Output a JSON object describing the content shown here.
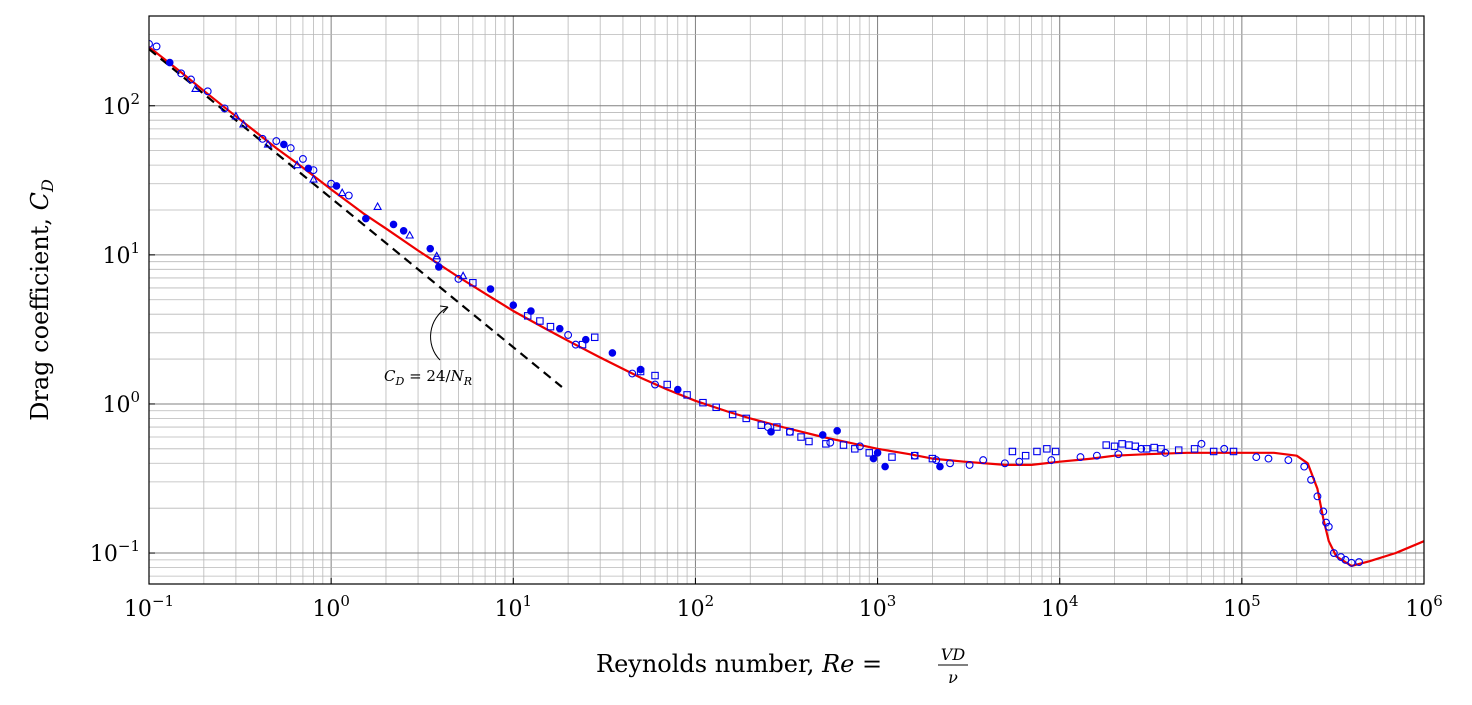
{
  "colors": {
    "curve": "#ee0000",
    "markers": "#0000ee",
    "reference_line": "#000000",
    "grid_major": "#808080",
    "grid_minor": "#b8b8b8",
    "background": "#ffffff"
  },
  "labels": {
    "xlabel_prefix": "Reynolds number, ",
    "xlabel_symbol": "Re",
    "xlabel_equals": " = ",
    "xlabel_numerator": "VD",
    "xlabel_denominator": "ν",
    "ylabel_prefix": "Drag coefficient, ",
    "ylabel_symbol": "C",
    "ylabel_subscript": "D",
    "annotation_symbol": "C",
    "annotation_subscript_d": "D",
    "annotation_middle": " = 24/",
    "annotation_symbol2": "N",
    "annotation_subscript_r": "R",
    "x_ticks": [
      {
        "base": "10",
        "exp": "−1"
      },
      {
        "base": "10",
        "exp": "0"
      },
      {
        "base": "10",
        "exp": "1"
      },
      {
        "base": "10",
        "exp": "2"
      },
      {
        "base": "10",
        "exp": "3"
      },
      {
        "base": "10",
        "exp": "4"
      },
      {
        "base": "10",
        "exp": "5"
      },
      {
        "base": "10",
        "exp": "6"
      }
    ],
    "y_ticks": [
      {
        "base": "10",
        "exp": "−1"
      },
      {
        "base": "10",
        "exp": "0"
      },
      {
        "base": "10",
        "exp": "1"
      },
      {
        "base": "10",
        "exp": "2"
      }
    ]
  },
  "chart_data": {
    "type": "scatter",
    "title": "",
    "xlabel": "Reynolds number, Re = VD/ν",
    "ylabel": "Drag coefficient, C_D",
    "xscale": "log",
    "yscale": "log",
    "xlim": [
      0.1,
      1000000
    ],
    "ylim": [
      0.062,
      400
    ],
    "grid": true,
    "series": [
      {
        "kind": "line",
        "style": "solid",
        "x": [
          0.1,
          0.15,
          0.2,
          0.3,
          0.5,
          0.7,
          1,
          1.5,
          2,
          3,
          5,
          7,
          10,
          15,
          20,
          30,
          50,
          70,
          100,
          150,
          200,
          300,
          500,
          700,
          1000,
          1500,
          2000,
          3000,
          5000,
          7000,
          10000,
          15000,
          20000,
          30000,
          50000,
          100000,
          150000,
          200000,
          230000,
          260000,
          280000,
          300000,
          330000,
          400000,
          500000,
          700000,
          1000000
        ],
        "y": [
          248,
          168,
          126,
          85,
          52,
          38.5,
          27.5,
          19,
          15,
          10.7,
          7.1,
          5.5,
          4.2,
          3.2,
          2.65,
          2.05,
          1.5,
          1.25,
          1.05,
          0.89,
          0.8,
          0.7,
          0.6,
          0.55,
          0.5,
          0.46,
          0.43,
          0.41,
          0.39,
          0.39,
          0.41,
          0.43,
          0.45,
          0.46,
          0.47,
          0.47,
          0.47,
          0.45,
          0.4,
          0.27,
          0.17,
          0.12,
          0.095,
          0.082,
          0.088,
          0.1,
          0.12
        ]
      },
      {
        "kind": "line",
        "style": "dashed",
        "x": [
          0.1,
          18.5
        ],
        "y": [
          240,
          1.3
        ]
      },
      {
        "kind": "marker",
        "marker": "open-circle",
        "x": [
          0.1,
          0.11,
          0.15,
          0.17,
          0.21,
          0.26,
          0.42,
          0.5,
          0.6,
          0.7,
          0.8,
          1,
          1.25,
          3.8,
          5,
          20,
          22,
          45,
          60,
          250,
          330,
          550,
          800,
          1600,
          2100,
          2500,
          3200,
          3800,
          5000,
          6000,
          9000,
          13000,
          16000,
          21000,
          28000,
          38000,
          60000,
          80000,
          120000,
          140000,
          180000,
          220000,
          240000,
          260000,
          280000,
          290000,
          300000,
          320000,
          350000,
          370000,
          400000,
          440000
        ],
        "y": [
          260,
          250,
          165,
          150,
          125,
          96,
          60,
          58,
          52,
          44,
          37,
          30,
          25,
          9.3,
          6.9,
          2.9,
          2.5,
          1.6,
          1.35,
          0.7,
          0.65,
          0.55,
          0.52,
          0.45,
          0.42,
          0.4,
          0.39,
          0.42,
          0.4,
          0.41,
          0.42,
          0.44,
          0.45,
          0.46,
          0.5,
          0.47,
          0.54,
          0.5,
          0.44,
          0.43,
          0.42,
          0.38,
          0.31,
          0.24,
          0.19,
          0.16,
          0.15,
          0.1,
          0.094,
          0.09,
          0.086,
          0.087
        ]
      },
      {
        "kind": "marker",
        "marker": "filled-circle",
        "x": [
          0.13,
          0.55,
          0.75,
          1.07,
          1.55,
          2.2,
          2.5,
          3.5,
          3.9,
          7.5,
          10,
          12.5,
          18,
          25,
          35,
          50,
          80,
          260,
          500,
          600,
          950,
          1000,
          1100,
          2200
        ],
        "y": [
          195,
          55,
          38,
          29,
          17.5,
          16,
          14.5,
          11,
          8.3,
          5.9,
          4.6,
          4.2,
          3.2,
          2.7,
          2.2,
          1.7,
          1.25,
          0.65,
          0.62,
          0.66,
          0.43,
          0.47,
          0.38,
          0.38
        ]
      },
      {
        "kind": "marker",
        "marker": "open-triangle",
        "x": [
          0.18,
          0.3,
          0.33,
          0.45,
          0.65,
          0.8,
          1.15,
          1.8,
          2.7,
          3.8,
          5.3
        ],
        "y": [
          130,
          85,
          75,
          55,
          40,
          32,
          26,
          21,
          13.5,
          9.8,
          7.2
        ]
      },
      {
        "kind": "marker",
        "marker": "open-square",
        "x": [
          6,
          12,
          14,
          16,
          24,
          28,
          50,
          60,
          70,
          90,
          110,
          130,
          160,
          190,
          230,
          280,
          330,
          380,
          420,
          520,
          650,
          750,
          900,
          1200,
          1600,
          2000,
          5500,
          6500,
          7500,
          8500,
          9500,
          18000,
          20000,
          22000,
          24000,
          26000,
          30000,
          33000,
          36000,
          45000,
          55000,
          70000,
          90000
        ],
        "y": [
          6.5,
          3.9,
          3.6,
          3.3,
          2.5,
          2.8,
          1.65,
          1.55,
          1.35,
          1.15,
          1.02,
          0.95,
          0.85,
          0.8,
          0.72,
          0.7,
          0.65,
          0.6,
          0.56,
          0.54,
          0.53,
          0.5,
          0.47,
          0.44,
          0.45,
          0.43,
          0.48,
          0.45,
          0.48,
          0.5,
          0.48,
          0.53,
          0.52,
          0.54,
          0.53,
          0.52,
          0.5,
          0.51,
          0.5,
          0.49,
          0.5,
          0.48,
          0.48
        ]
      }
    ],
    "annotations": [
      {
        "text": "C_D = 24/N_R",
        "arrow_to": [
          5.2,
          4.5
        ]
      }
    ]
  }
}
